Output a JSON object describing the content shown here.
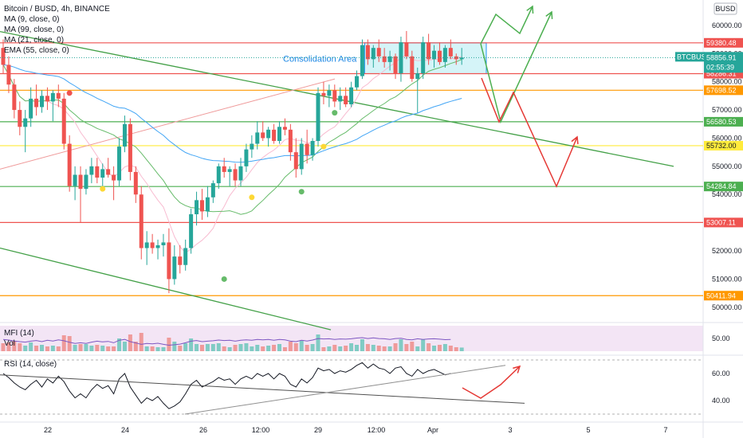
{
  "header": {
    "title": "Bitcoin / BUSD, 4h, BINANCE",
    "indicators": [
      "MA (9, close, 0)",
      "MA (99, close, 0)",
      "MA (21, close, 0)",
      "EMA (55, close, 0)"
    ],
    "currency_badge": "BUSD"
  },
  "colors": {
    "up": "#26a69a",
    "down": "#ef5350",
    "trend": "#43a047",
    "arrow": "#e53935",
    "projection": "#4caf50",
    "box_fill": "#b2ebf2",
    "box_border": "#2196f3",
    "mfi_bg": "#f3e5f5"
  },
  "chart_data": {
    "type": "candlestick",
    "x_ticks": [
      "22",
      "24",
      "26",
      "12:00",
      "29",
      "12:00",
      "Apr",
      "3",
      "5",
      "7"
    ],
    "y_ticks": [
      50000,
      51000,
      52000,
      53000,
      54000,
      55000,
      56000,
      57000,
      58000,
      59000,
      60000
    ],
    "ylim": [
      49600,
      60900
    ],
    "price_label": {
      "symbol": "BTCBUSD",
      "price": "58856.91",
      "countdown": "02:55:39",
      "value": 58856.91
    },
    "levels": [
      {
        "value": 59380.48,
        "label": "59380.48",
        "color": "#ef5350"
      },
      {
        "value": 58286.31,
        "label": "58286.31",
        "color": "#ef5350"
      },
      {
        "value": 57698.52,
        "label": "57698.52",
        "color": "#ff9800"
      },
      {
        "value": 56580.53,
        "label": "56580.53",
        "color": "#4caf50"
      },
      {
        "value": 55732.0,
        "label": "55732.00",
        "color": "#ffeb3b"
      },
      {
        "value": 54284.84,
        "label": "54284.84",
        "color": "#4caf50"
      },
      {
        "value": 53007.11,
        "label": "53007.11",
        "color": "#ef5350"
      },
      {
        "value": 50411.94,
        "label": "50411.94",
        "color": "#ff9800"
      }
    ],
    "annotation": "Consolidation Area",
    "candles": [
      {
        "o": 59200,
        "h": 59500,
        "l": 58300,
        "c": 58600
      },
      {
        "o": 58600,
        "h": 58900,
        "l": 57600,
        "c": 57900
      },
      {
        "o": 57900,
        "h": 58100,
        "l": 56700,
        "c": 57000
      },
      {
        "o": 57000,
        "h": 57300,
        "l": 56100,
        "c": 56400
      },
      {
        "o": 56400,
        "h": 57000,
        "l": 55500,
        "c": 56700
      },
      {
        "o": 56700,
        "h": 57800,
        "l": 56400,
        "c": 57400
      },
      {
        "o": 57400,
        "h": 57900,
        "l": 56800,
        "c": 57100
      },
      {
        "o": 57100,
        "h": 57700,
        "l": 56900,
        "c": 57500
      },
      {
        "o": 57500,
        "h": 57800,
        "l": 57000,
        "c": 57300
      },
      {
        "o": 57300,
        "h": 57700,
        "l": 56600,
        "c": 57600
      },
      {
        "o": 57600,
        "h": 57900,
        "l": 57100,
        "c": 57400
      },
      {
        "o": 57400,
        "h": 57600,
        "l": 55600,
        "c": 55800
      },
      {
        "o": 55800,
        "h": 56100,
        "l": 54100,
        "c": 54300
      },
      {
        "o": 54300,
        "h": 55000,
        "l": 53800,
        "c": 54700
      },
      {
        "o": 54700,
        "h": 55000,
        "l": 53000,
        "c": 54200
      },
      {
        "o": 54200,
        "h": 54900,
        "l": 54000,
        "c": 54700
      },
      {
        "o": 54700,
        "h": 55300,
        "l": 54400,
        "c": 55000
      },
      {
        "o": 55000,
        "h": 55300,
        "l": 54400,
        "c": 54600
      },
      {
        "o": 54600,
        "h": 55100,
        "l": 54300,
        "c": 54900
      },
      {
        "o": 54900,
        "h": 55300,
        "l": 54600,
        "c": 54700
      },
      {
        "o": 54700,
        "h": 55000,
        "l": 53800,
        "c": 54500
      },
      {
        "o": 54500,
        "h": 56000,
        "l": 54300,
        "c": 55700
      },
      {
        "o": 55700,
        "h": 56800,
        "l": 55500,
        "c": 56500
      },
      {
        "o": 56500,
        "h": 56700,
        "l": 54500,
        "c": 54800
      },
      {
        "o": 54800,
        "h": 55000,
        "l": 53700,
        "c": 54000
      },
      {
        "o": 54000,
        "h": 54300,
        "l": 51700,
        "c": 52100
      },
      {
        "o": 52100,
        "h": 52700,
        "l": 51500,
        "c": 52300
      },
      {
        "o": 52300,
        "h": 52600,
        "l": 51900,
        "c": 52100
      },
      {
        "o": 52100,
        "h": 52400,
        "l": 51700,
        "c": 52200
      },
      {
        "o": 52200,
        "h": 52600,
        "l": 51800,
        "c": 52300
      },
      {
        "o": 52300,
        "h": 52800,
        "l": 50500,
        "c": 51000
      },
      {
        "o": 51000,
        "h": 52200,
        "l": 50800,
        "c": 51800
      },
      {
        "o": 51800,
        "h": 52200,
        "l": 51200,
        "c": 51500
      },
      {
        "o": 51500,
        "h": 52400,
        "l": 51300,
        "c": 52100
      },
      {
        "o": 52100,
        "h": 53500,
        "l": 51900,
        "c": 53300
      },
      {
        "o": 53300,
        "h": 54100,
        "l": 52900,
        "c": 53800
      },
      {
        "o": 53800,
        "h": 54200,
        "l": 53100,
        "c": 53400
      },
      {
        "o": 53400,
        "h": 54300,
        "l": 53200,
        "c": 53900
      },
      {
        "o": 53900,
        "h": 54500,
        "l": 53700,
        "c": 54400
      },
      {
        "o": 54400,
        "h": 55100,
        "l": 54200,
        "c": 55000
      },
      {
        "o": 55000,
        "h": 55300,
        "l": 54600,
        "c": 54800
      },
      {
        "o": 54800,
        "h": 55000,
        "l": 54300,
        "c": 54900
      },
      {
        "o": 54900,
        "h": 55100,
        "l": 54300,
        "c": 54500
      },
      {
        "o": 54500,
        "h": 55300,
        "l": 54300,
        "c": 55000
      },
      {
        "o": 55000,
        "h": 55800,
        "l": 54800,
        "c": 55600
      },
      {
        "o": 55600,
        "h": 56100,
        "l": 55300,
        "c": 55800
      },
      {
        "o": 55800,
        "h": 56600,
        "l": 55600,
        "c": 56200
      },
      {
        "o": 56200,
        "h": 56600,
        "l": 55900,
        "c": 56000
      },
      {
        "o": 56000,
        "h": 56400,
        "l": 55700,
        "c": 56300
      },
      {
        "o": 56300,
        "h": 56500,
        "l": 55800,
        "c": 55900
      },
      {
        "o": 55900,
        "h": 56600,
        "l": 55800,
        "c": 56400
      },
      {
        "o": 56400,
        "h": 56700,
        "l": 56100,
        "c": 56300
      },
      {
        "o": 56300,
        "h": 56500,
        "l": 55200,
        "c": 55500
      },
      {
        "o": 55500,
        "h": 56000,
        "l": 54600,
        "c": 54900
      },
      {
        "o": 54900,
        "h": 56000,
        "l": 54700,
        "c": 55800
      },
      {
        "o": 55800,
        "h": 56300,
        "l": 55100,
        "c": 55400
      },
      {
        "o": 55400,
        "h": 56000,
        "l": 55200,
        "c": 55900
      },
      {
        "o": 55900,
        "h": 57800,
        "l": 55700,
        "c": 57600
      },
      {
        "o": 57600,
        "h": 58000,
        "l": 57200,
        "c": 57500
      },
      {
        "o": 57500,
        "h": 57900,
        "l": 57100,
        "c": 57700
      },
      {
        "o": 57700,
        "h": 57900,
        "l": 57100,
        "c": 57300
      },
      {
        "o": 57300,
        "h": 57800,
        "l": 57000,
        "c": 57500
      },
      {
        "o": 57500,
        "h": 57800,
        "l": 57100,
        "c": 57200
      },
      {
        "o": 57200,
        "h": 58000,
        "l": 57100,
        "c": 57800
      },
      {
        "o": 57800,
        "h": 58400,
        "l": 57700,
        "c": 58200
      },
      {
        "o": 58200,
        "h": 59500,
        "l": 58100,
        "c": 59300
      },
      {
        "o": 59300,
        "h": 59500,
        "l": 58600,
        "c": 58800
      },
      {
        "o": 58800,
        "h": 59300,
        "l": 58500,
        "c": 59200
      },
      {
        "o": 59200,
        "h": 59500,
        "l": 58700,
        "c": 58900
      },
      {
        "o": 58900,
        "h": 59200,
        "l": 58500,
        "c": 58700
      },
      {
        "o": 58700,
        "h": 59100,
        "l": 58400,
        "c": 58900
      },
      {
        "o": 58900,
        "h": 59000,
        "l": 58100,
        "c": 58300
      },
      {
        "o": 58300,
        "h": 59600,
        "l": 58000,
        "c": 59400
      },
      {
        "o": 59400,
        "h": 59800,
        "l": 58800,
        "c": 58900
      },
      {
        "o": 58900,
        "h": 59100,
        "l": 58000,
        "c": 58100
      },
      {
        "o": 58100,
        "h": 58500,
        "l": 56900,
        "c": 58300
      },
      {
        "o": 58300,
        "h": 59600,
        "l": 58100,
        "c": 59400
      },
      {
        "o": 59400,
        "h": 59700,
        "l": 58600,
        "c": 58800
      },
      {
        "o": 58800,
        "h": 59300,
        "l": 58500,
        "c": 59100
      },
      {
        "o": 59100,
        "h": 59400,
        "l": 58600,
        "c": 58700
      },
      {
        "o": 58700,
        "h": 59300,
        "l": 58500,
        "c": 59200
      },
      {
        "o": 59200,
        "h": 59500,
        "l": 58800,
        "c": 58900
      },
      {
        "o": 58900,
        "h": 59000,
        "l": 58600,
        "c": 58800
      },
      {
        "o": 58800,
        "h": 59200,
        "l": 58600,
        "c": 58857
      }
    ],
    "mfi": {
      "label": "MFI (14)",
      "vol_label": "Vol",
      "y_ticks": [
        50.0
      ],
      "y_tick_labels": [
        "50.00"
      ]
    },
    "rsi": {
      "label": "RSI (14, close)",
      "y_ticks": [
        40.0,
        60.0
      ],
      "y_tick_labels": [
        "40.00",
        "60.00"
      ],
      "values": [
        60,
        57,
        53,
        50,
        48,
        52,
        55,
        50,
        56,
        53,
        58,
        54,
        47,
        42,
        45,
        42,
        48,
        52,
        49,
        51,
        45,
        56,
        60,
        50,
        44,
        38,
        42,
        40,
        43,
        38,
        34,
        36,
        39,
        45,
        52,
        55,
        50,
        52,
        54,
        57,
        55,
        56,
        52,
        56,
        58,
        56,
        60,
        58,
        60,
        56,
        60,
        58,
        52,
        50,
        56,
        53,
        57,
        64,
        62,
        63,
        60,
        62,
        61,
        63,
        66,
        68,
        64,
        67,
        64,
        63,
        60,
        64,
        65,
        60,
        58,
        63,
        60,
        62,
        63,
        61,
        59,
        60
      ]
    }
  }
}
